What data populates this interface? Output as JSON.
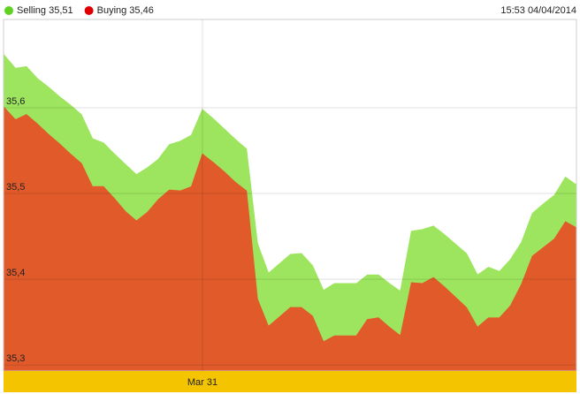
{
  "chart_data": {
    "type": "area",
    "timestamp": "15:53 04/04/2014",
    "categories": [
      null,
      null,
      null,
      null,
      null,
      null,
      null,
      null,
      null,
      null,
      null,
      null,
      null,
      null,
      null,
      null,
      null,
      null,
      "Mar 31",
      null,
      null,
      null,
      null,
      null,
      null,
      null,
      null,
      null,
      null,
      null,
      null,
      null,
      null,
      null,
      null,
      null,
      null,
      null,
      null,
      null,
      null,
      null,
      null,
      null,
      null,
      null,
      null,
      null,
      null,
      null,
      null,
      null,
      null
    ],
    "series": [
      {
        "name": "Selling 35,51",
        "color": "#5ed21e",
        "fill": "#9de55e",
        "values": [
          35.661,
          35.646,
          35.648,
          35.634,
          35.624,
          35.613,
          35.603,
          35.592,
          35.564,
          35.559,
          35.546,
          35.534,
          35.522,
          35.53,
          35.54,
          35.557,
          35.561,
          35.568,
          35.598,
          35.587,
          35.575,
          35.563,
          35.552,
          35.442,
          35.407,
          35.418,
          35.429,
          35.43,
          35.416,
          35.387,
          35.395,
          35.395,
          35.395,
          35.405,
          35.405,
          35.395,
          35.386,
          35.456,
          35.458,
          35.462,
          35.452,
          35.441,
          35.43,
          35.405,
          35.414,
          35.409,
          35.423,
          35.443,
          35.477,
          35.488,
          35.498,
          35.519,
          35.51
        ]
      },
      {
        "name": "Buying 35,46",
        "color": "#e00000",
        "fill": "#e05a2a",
        "values": [
          35.6,
          35.586,
          35.592,
          35.581,
          35.569,
          35.558,
          35.546,
          35.535,
          35.508,
          35.508,
          35.494,
          35.479,
          35.468,
          35.478,
          35.493,
          35.504,
          35.503,
          35.508,
          35.546,
          35.536,
          35.525,
          35.513,
          35.503,
          35.377,
          35.345,
          35.356,
          35.367,
          35.367,
          35.357,
          35.327,
          35.334,
          35.334,
          35.334,
          35.353,
          35.355,
          35.344,
          35.334,
          35.396,
          35.395,
          35.402,
          35.391,
          35.379,
          35.367,
          35.344,
          35.355,
          35.355,
          35.369,
          35.394,
          35.427,
          35.437,
          35.447,
          35.467,
          35.46
        ]
      }
    ],
    "ylim": [
      35.293,
      35.703
    ],
    "yticks": [
      {
        "value": 35.3,
        "label": "35,3"
      },
      {
        "value": 35.4,
        "label": "35,4"
      },
      {
        "value": 35.5,
        "label": "35,5"
      },
      {
        "value": 35.6,
        "label": "35,6"
      }
    ],
    "grid": true
  }
}
